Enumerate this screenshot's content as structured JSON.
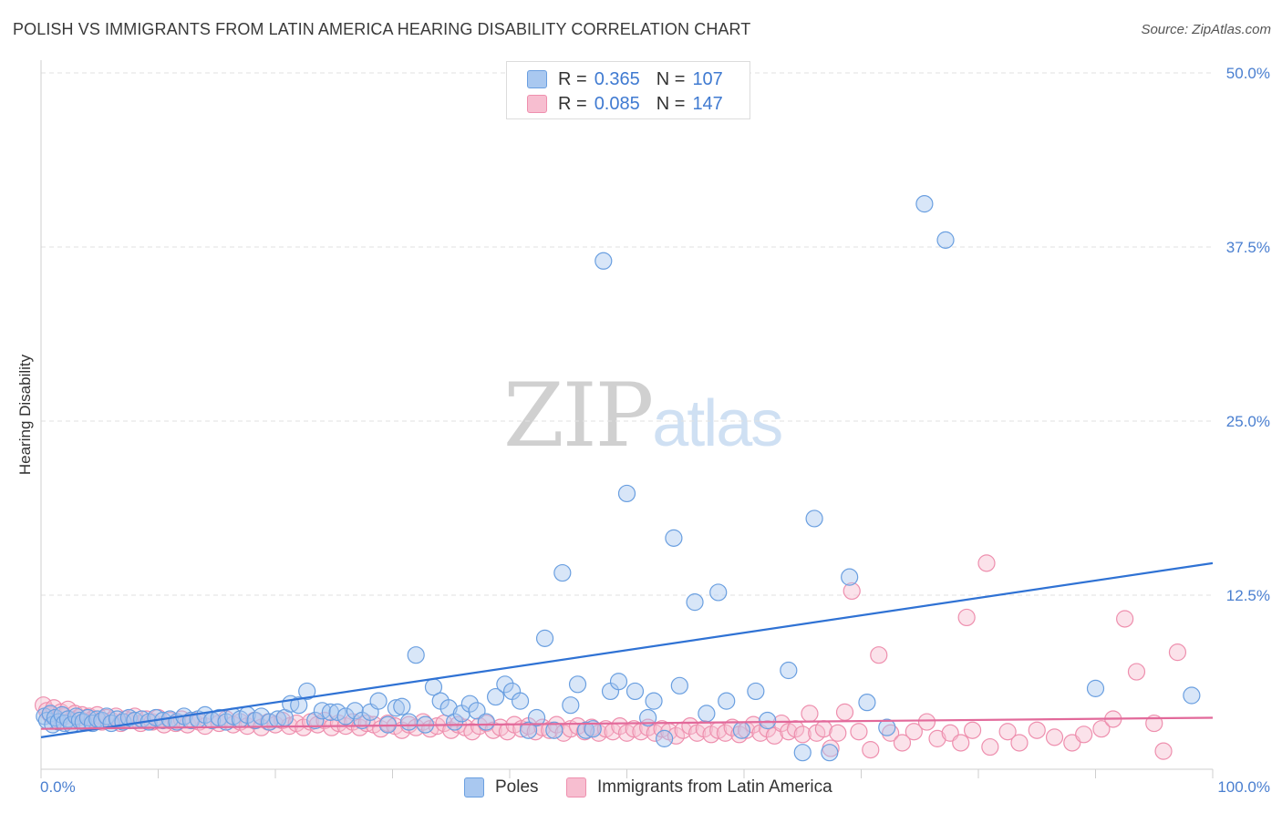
{
  "title": "POLISH VS IMMIGRANTS FROM LATIN AMERICA HEARING DISABILITY CORRELATION CHART",
  "source": "Source: ZipAtlas.com",
  "watermark": {
    "zip": "ZIP",
    "atlas": "atlas"
  },
  "legend": {
    "r_label": "R =",
    "n_label": "N =",
    "rows": [
      {
        "r": "0.365",
        "n": "107"
      },
      {
        "r": "0.085",
        "n": "147"
      }
    ]
  },
  "bottom_legend": [
    "Poles",
    "Immigrants from Latin America"
  ],
  "colors": {
    "poles_fill": "#a9c8f0",
    "poles_stroke": "#6a9fe0",
    "poles_line": "#2f72d4",
    "latin_fill": "#f7bed0",
    "latin_stroke": "#ee8fae",
    "latin_line": "#e2699a"
  },
  "chart_data": {
    "type": "scatter",
    "title": "POLISH VS IMMIGRANTS FROM LATIN AMERICA HEARING DISABILITY CORRELATION CHART",
    "xlabel": "",
    "ylabel": "Hearing Disability",
    "xlim": [
      0,
      100
    ],
    "ylim": [
      0,
      50
    ],
    "x_tick_labels": [
      "0.0%",
      "100.0%"
    ],
    "y_ticks": [
      12.5,
      25.0,
      37.5,
      50.0
    ],
    "y_tick_labels": [
      "12.5%",
      "25.0%",
      "37.5%",
      "50.0%"
    ],
    "grid": true,
    "legend_position": "top-center",
    "series": [
      {
        "name": "Poles",
        "r": 0.365,
        "n": 107,
        "trend": [
          [
            0,
            2.3
          ],
          [
            100,
            14.8
          ]
        ],
        "points": [
          [
            0.3,
            3.8
          ],
          [
            0.5,
            3.5
          ],
          [
            0.8,
            4.0
          ],
          [
            1.0,
            3.2
          ],
          [
            1.2,
            3.7
          ],
          [
            1.5,
            3.4
          ],
          [
            1.8,
            3.9
          ],
          [
            2.0,
            3.3
          ],
          [
            2.3,
            3.6
          ],
          [
            2.6,
            3.2
          ],
          [
            3.0,
            3.8
          ],
          [
            3.3,
            3.5
          ],
          [
            3.6,
            3.4
          ],
          [
            4.0,
            3.7
          ],
          [
            4.4,
            3.3
          ],
          [
            4.8,
            3.6
          ],
          [
            5.2,
            3.5
          ],
          [
            5.6,
            3.8
          ],
          [
            6.0,
            3.3
          ],
          [
            6.5,
            3.6
          ],
          [
            7.0,
            3.4
          ],
          [
            7.5,
            3.7
          ],
          [
            8.0,
            3.5
          ],
          [
            8.6,
            3.6
          ],
          [
            9.2,
            3.4
          ],
          [
            9.8,
            3.7
          ],
          [
            10.4,
            3.5
          ],
          [
            11.0,
            3.6
          ],
          [
            11.6,
            3.4
          ],
          [
            12.2,
            3.8
          ],
          [
            12.8,
            3.5
          ],
          [
            13.4,
            3.6
          ],
          [
            14.0,
            3.9
          ],
          [
            14.6,
            3.5
          ],
          [
            15.2,
            3.7
          ],
          [
            15.8,
            3.4
          ],
          [
            16.4,
            3.8
          ],
          [
            17.0,
            3.6
          ],
          [
            17.6,
            3.9
          ],
          [
            18.3,
            3.5
          ],
          [
            18.8,
            3.8
          ],
          [
            19.5,
            3.4
          ],
          [
            20.2,
            3.6
          ],
          [
            20.8,
            3.7
          ],
          [
            21.3,
            4.7
          ],
          [
            22.0,
            4.6
          ],
          [
            22.7,
            5.6
          ],
          [
            23.4,
            3.5
          ],
          [
            24.0,
            4.2
          ],
          [
            24.7,
            4.1
          ],
          [
            25.3,
            4.1
          ],
          [
            26.0,
            3.8
          ],
          [
            26.8,
            4.2
          ],
          [
            27.4,
            3.5
          ],
          [
            28.1,
            4.1
          ],
          [
            28.8,
            4.9
          ],
          [
            29.6,
            3.2
          ],
          [
            30.3,
            4.4
          ],
          [
            30.8,
            4.5
          ],
          [
            31.4,
            3.4
          ],
          [
            32.0,
            8.2
          ],
          [
            32.8,
            3.2
          ],
          [
            33.5,
            5.9
          ],
          [
            34.1,
            4.9
          ],
          [
            34.8,
            4.4
          ],
          [
            35.3,
            3.4
          ],
          [
            35.9,
            4.0
          ],
          [
            36.6,
            4.7
          ],
          [
            37.2,
            4.2
          ],
          [
            38.0,
            3.4
          ],
          [
            38.8,
            5.2
          ],
          [
            39.6,
            6.1
          ],
          [
            40.2,
            5.6
          ],
          [
            40.9,
            4.9
          ],
          [
            41.6,
            2.8
          ],
          [
            42.3,
            3.7
          ],
          [
            43.0,
            9.4
          ],
          [
            43.8,
            2.8
          ],
          [
            44.5,
            14.1
          ],
          [
            45.2,
            4.6
          ],
          [
            45.8,
            6.1
          ],
          [
            46.5,
            2.8
          ],
          [
            47.1,
            2.9
          ],
          [
            48.0,
            36.5
          ],
          [
            48.6,
            5.6
          ],
          [
            49.3,
            6.3
          ],
          [
            50.0,
            19.8
          ],
          [
            50.7,
            5.6
          ],
          [
            51.8,
            3.7
          ],
          [
            52.3,
            4.9
          ],
          [
            53.2,
            2.2
          ],
          [
            54.0,
            16.6
          ],
          [
            54.5,
            6.0
          ],
          [
            55.8,
            12.0
          ],
          [
            56.8,
            4.0
          ],
          [
            57.8,
            12.7
          ],
          [
            58.5,
            4.9
          ],
          [
            59.8,
            2.8
          ],
          [
            61.0,
            5.6
          ],
          [
            62.0,
            3.5
          ],
          [
            63.8,
            7.1
          ],
          [
            65.0,
            1.2
          ],
          [
            66.0,
            18.0
          ],
          [
            67.3,
            1.2
          ],
          [
            69.0,
            13.8
          ],
          [
            70.5,
            4.8
          ],
          [
            72.2,
            3.0
          ],
          [
            75.4,
            40.6
          ],
          [
            77.2,
            38.0
          ],
          [
            90.0,
            5.8
          ],
          [
            98.2,
            5.3
          ]
        ]
      },
      {
        "name": "Immigrants from Latin America",
        "r": 0.085,
        "n": 147,
        "trend": [
          [
            0,
            2.9
          ],
          [
            100,
            3.7
          ]
        ],
        "points": [
          [
            0.2,
            4.6
          ],
          [
            0.5,
            4.2
          ],
          [
            0.8,
            3.9
          ],
          [
            1.1,
            4.4
          ],
          [
            1.4,
            3.6
          ],
          [
            1.7,
            4.1
          ],
          [
            2.0,
            3.8
          ],
          [
            2.3,
            4.3
          ],
          [
            2.6,
            3.5
          ],
          [
            2.9,
            4.0
          ],
          [
            3.2,
            3.7
          ],
          [
            3.5,
            3.9
          ],
          [
            3.8,
            3.4
          ],
          [
            4.1,
            3.8
          ],
          [
            4.4,
            3.6
          ],
          [
            4.8,
            3.9
          ],
          [
            5.2,
            3.4
          ],
          [
            5.6,
            3.7
          ],
          [
            6.0,
            3.5
          ],
          [
            6.4,
            3.8
          ],
          [
            6.8,
            3.3
          ],
          [
            7.2,
            3.6
          ],
          [
            7.6,
            3.5
          ],
          [
            8.0,
            3.8
          ],
          [
            8.5,
            3.3
          ],
          [
            9.0,
            3.6
          ],
          [
            9.5,
            3.4
          ],
          [
            10.0,
            3.7
          ],
          [
            10.5,
            3.2
          ],
          [
            11.0,
            3.5
          ],
          [
            11.5,
            3.3
          ],
          [
            12.0,
            3.6
          ],
          [
            12.5,
            3.2
          ],
          [
            13.0,
            3.5
          ],
          [
            13.5,
            3.4
          ],
          [
            14.0,
            3.1
          ],
          [
            14.6,
            3.5
          ],
          [
            15.2,
            3.3
          ],
          [
            15.8,
            3.6
          ],
          [
            16.4,
            3.2
          ],
          [
            17.0,
            3.4
          ],
          [
            17.6,
            3.1
          ],
          [
            18.2,
            3.5
          ],
          [
            18.8,
            3.0
          ],
          [
            19.4,
            3.4
          ],
          [
            20.0,
            3.2
          ],
          [
            20.6,
            3.5
          ],
          [
            21.2,
            3.1
          ],
          [
            21.8,
            3.3
          ],
          [
            22.4,
            3.0
          ],
          [
            23.0,
            3.4
          ],
          [
            23.6,
            3.2
          ],
          [
            24.2,
            3.5
          ],
          [
            24.8,
            3.0
          ],
          [
            25.4,
            3.3
          ],
          [
            26.0,
            3.1
          ],
          [
            26.6,
            3.4
          ],
          [
            27.2,
            3.0
          ],
          [
            27.8,
            3.3
          ],
          [
            28.4,
            3.2
          ],
          [
            29.0,
            2.9
          ],
          [
            29.6,
            3.3
          ],
          [
            30.2,
            3.1
          ],
          [
            30.8,
            2.8
          ],
          [
            31.4,
            3.2
          ],
          [
            32.0,
            3.0
          ],
          [
            32.6,
            3.4
          ],
          [
            33.2,
            2.9
          ],
          [
            33.8,
            3.1
          ],
          [
            34.4,
            3.3
          ],
          [
            35.0,
            2.8
          ],
          [
            35.6,
            3.2
          ],
          [
            36.2,
            3.0
          ],
          [
            36.8,
            2.7
          ],
          [
            37.4,
            3.1
          ],
          [
            38.0,
            3.3
          ],
          [
            38.6,
            2.8
          ],
          [
            39.2,
            3.0
          ],
          [
            39.8,
            2.7
          ],
          [
            40.4,
            3.2
          ],
          [
            41.0,
            2.9
          ],
          [
            41.6,
            3.1
          ],
          [
            42.2,
            2.7
          ],
          [
            42.8,
            3.0
          ],
          [
            43.4,
            2.8
          ],
          [
            44.0,
            3.2
          ],
          [
            44.6,
            2.6
          ],
          [
            45.2,
            2.9
          ],
          [
            45.8,
            3.1
          ],
          [
            46.4,
            2.7
          ],
          [
            47.0,
            3.0
          ],
          [
            47.6,
            2.6
          ],
          [
            48.2,
            2.9
          ],
          [
            48.8,
            2.7
          ],
          [
            49.4,
            3.1
          ],
          [
            50.0,
            2.6
          ],
          [
            50.6,
            2.9
          ],
          [
            51.2,
            2.7
          ],
          [
            51.8,
            3.0
          ],
          [
            52.4,
            2.6
          ],
          [
            53.0,
            2.9
          ],
          [
            53.6,
            2.7
          ],
          [
            54.2,
            2.4
          ],
          [
            54.8,
            2.8
          ],
          [
            55.4,
            3.1
          ],
          [
            56.0,
            2.6
          ],
          [
            56.6,
            2.9
          ],
          [
            57.2,
            2.5
          ],
          [
            57.8,
            2.8
          ],
          [
            58.4,
            2.6
          ],
          [
            59.0,
            3.0
          ],
          [
            59.6,
            2.5
          ],
          [
            60.2,
            2.8
          ],
          [
            60.8,
            3.2
          ],
          [
            61.4,
            2.6
          ],
          [
            62.0,
            2.9
          ],
          [
            62.6,
            2.4
          ],
          [
            63.2,
            3.3
          ],
          [
            63.8,
            2.7
          ],
          [
            64.4,
            2.9
          ],
          [
            65.0,
            2.5
          ],
          [
            65.6,
            4.0
          ],
          [
            66.2,
            2.6
          ],
          [
            66.8,
            2.9
          ],
          [
            67.4,
            1.5
          ],
          [
            68.0,
            2.6
          ],
          [
            68.6,
            4.1
          ],
          [
            69.2,
            12.8
          ],
          [
            69.8,
            2.7
          ],
          [
            70.8,
            1.4
          ],
          [
            71.5,
            8.2
          ],
          [
            72.5,
            2.6
          ],
          [
            73.5,
            1.9
          ],
          [
            74.5,
            2.7
          ],
          [
            75.6,
            3.4
          ],
          [
            76.5,
            2.2
          ],
          [
            77.6,
            2.6
          ],
          [
            78.5,
            1.9
          ],
          [
            79.5,
            2.8
          ],
          [
            81.0,
            1.6
          ],
          [
            82.5,
            2.7
          ],
          [
            83.5,
            1.9
          ],
          [
            85.0,
            2.8
          ],
          [
            86.5,
            2.3
          ],
          [
            88.0,
            1.9
          ],
          [
            89.0,
            2.5
          ],
          [
            90.5,
            2.9
          ],
          [
            91.5,
            3.6
          ],
          [
            92.5,
            10.8
          ],
          [
            93.5,
            7.0
          ],
          [
            95.0,
            3.3
          ],
          [
            95.8,
            1.3
          ],
          [
            97.0,
            8.4
          ],
          [
            79.0,
            10.9
          ],
          [
            80.7,
            14.8
          ]
        ]
      }
    ]
  }
}
